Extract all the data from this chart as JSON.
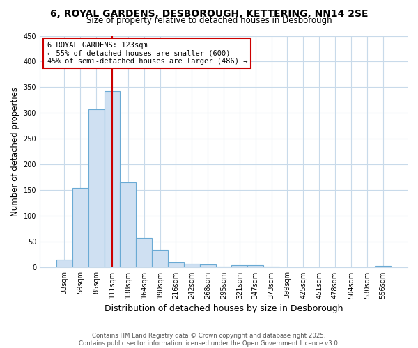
{
  "title": "6, ROYAL GARDENS, DESBOROUGH, KETTERING, NN14 2SE",
  "subtitle": "Size of property relative to detached houses in Desborough",
  "xlabel": "Distribution of detached houses by size in Desborough",
  "ylabel": "Number of detached properties",
  "footer_line1": "Contains HM Land Registry data © Crown copyright and database right 2025.",
  "footer_line2": "Contains public sector information licensed under the Open Government Licence v3.0.",
  "categories": [
    "33sqm",
    "59sqm",
    "85sqm",
    "111sqm",
    "138sqm",
    "164sqm",
    "190sqm",
    "216sqm",
    "242sqm",
    "268sqm",
    "295sqm",
    "321sqm",
    "347sqm",
    "373sqm",
    "399sqm",
    "425sqm",
    "451sqm",
    "478sqm",
    "504sqm",
    "530sqm",
    "556sqm"
  ],
  "values": [
    16,
    155,
    308,
    343,
    165,
    57,
    35,
    10,
    8,
    6,
    2,
    4,
    4,
    2,
    0,
    0,
    0,
    0,
    0,
    0,
    3
  ],
  "bar_color": "#cfe0f2",
  "bar_edge_color": "#6aaad4",
  "grid_color": "#c8daea",
  "ylim": [
    0,
    450
  ],
  "property_size_label": "6 ROYAL GARDENS: 123sqm",
  "annotation_line1": "← 55% of detached houses are smaller (600)",
  "annotation_line2": "45% of semi-detached houses are larger (486) →",
  "red_line_x": 3.0,
  "annotation_box_color": "#cc0000",
  "red_line_color": "#cc0000",
  "background_color": "#ffffff"
}
